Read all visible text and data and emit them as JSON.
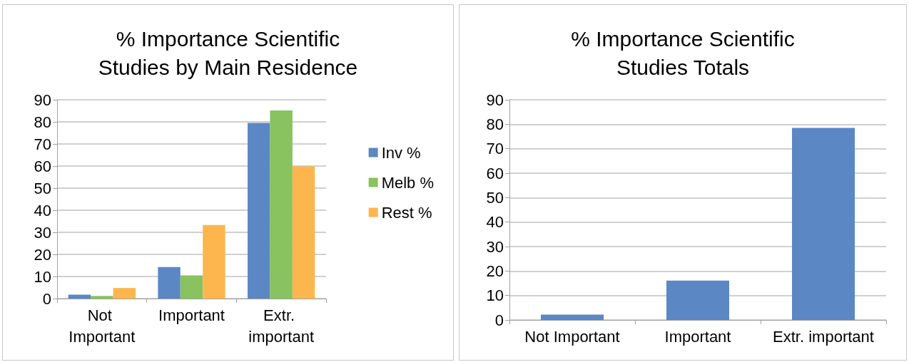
{
  "chart_data": [
    {
      "type": "bar",
      "title": "% Importance Scientific\nStudies by Main Residence",
      "categories": [
        "Not Important",
        "Important",
        "Extr. important"
      ],
      "series": [
        {
          "name": "Inv %",
          "color": "#5b87c5",
          "values": [
            1.8,
            14.3,
            79.5
          ]
        },
        {
          "name": "Melb %",
          "color": "#88c35f",
          "values": [
            1.2,
            10.5,
            85.2
          ]
        },
        {
          "name": "Rest %",
          "color": "#fdb64d",
          "values": [
            4.8,
            33.3,
            59.8
          ]
        }
      ],
      "ylim": [
        0,
        90
      ],
      "yticks": [
        0,
        10,
        20,
        30,
        40,
        50,
        60,
        70,
        80,
        90
      ],
      "grid": "y",
      "legend": "right"
    },
    {
      "type": "bar",
      "title": "% Importance Scientific\nStudies Totals",
      "categories": [
        "Not Important",
        "Important",
        "Extr. important"
      ],
      "values": [
        2.2,
        16.1,
        78.5
      ],
      "color": "#5b87c5",
      "ylim": [
        0,
        90
      ],
      "yticks": [
        0,
        10,
        20,
        30,
        40,
        50,
        60,
        70,
        80,
        90
      ],
      "grid": "y"
    }
  ]
}
